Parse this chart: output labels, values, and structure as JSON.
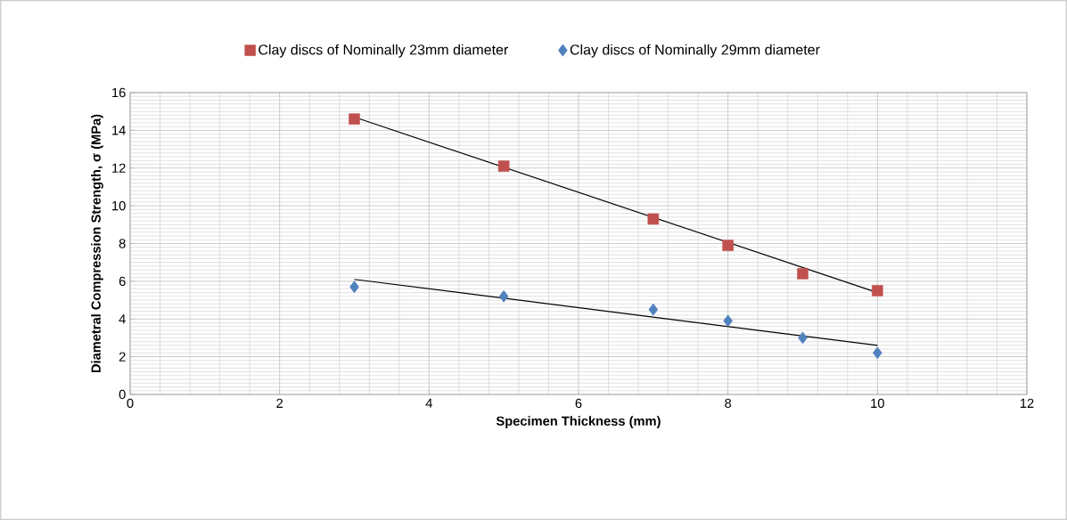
{
  "chart_data": {
    "type": "scatter",
    "xlabel": "Specimen Thickness (mm)",
    "ylabel": "Diametral Compression Strength, σ (MPa)",
    "xlim": [
      0,
      12
    ],
    "xticks": [
      0,
      2,
      4,
      6,
      8,
      10,
      12
    ],
    "ylim": [
      0,
      16
    ],
    "yticks": [
      0,
      2,
      4,
      6,
      8,
      10,
      12,
      14,
      16
    ],
    "grid": true,
    "legend": "top",
    "series": [
      {
        "name": "Clay discs of Nominally  23mm diameter",
        "color": "#c0504d",
        "marker": "square",
        "x": [
          3,
          5,
          7,
          8,
          9,
          10
        ],
        "values": [
          14.6,
          12.1,
          9.3,
          7.9,
          6.4,
          5.5
        ]
      },
      {
        "name": "Clay discs of Nominally  29mm diameter",
        "color": "#4f81bd",
        "marker": "diamond",
        "x": [
          3,
          5,
          7,
          8,
          9,
          10
        ],
        "values": [
          5.7,
          5.2,
          4.5,
          3.9,
          3.0,
          2.2
        ]
      },
      {
        "type": "line",
        "color": "#000000",
        "marker": "none",
        "x": [
          3,
          10
        ],
        "values": [
          14.7,
          5.4
        ]
      },
      {
        "type": "line",
        "color": "#000000",
        "marker": "none",
        "x": [
          3,
          10
        ],
        "values": [
          6.1,
          2.6
        ]
      }
    ]
  }
}
